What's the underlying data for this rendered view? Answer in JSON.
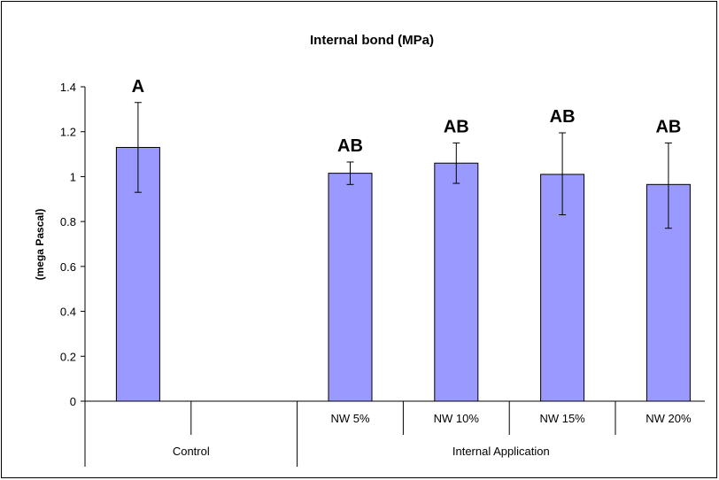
{
  "chart_data": {
    "type": "bar",
    "title": "Internal bond (MPa)",
    "ylabel": "(mega Pascal)",
    "xlabel": "",
    "ylim": [
      0,
      1.4
    ],
    "yticks": [
      "0",
      "0.2",
      "0.4",
      "0.6",
      "0.8",
      "1",
      "1.2",
      "1.4"
    ],
    "grid": false,
    "legend": "none",
    "categories": [
      {
        "label": "",
        "group": "Control",
        "value": 1.13,
        "err_low": 0.93,
        "err_high": 1.33,
        "sig": "A"
      },
      {
        "label": "NW 5%",
        "group": "Internal Application",
        "value": 1.015,
        "err_low": 0.965,
        "err_high": 1.065,
        "sig": "AB"
      },
      {
        "label": "NW 10%",
        "group": "Internal Application",
        "value": 1.06,
        "err_low": 0.97,
        "err_high": 1.15,
        "sig": "AB"
      },
      {
        "label": "NW 15%",
        "group": "Internal Application",
        "value": 1.01,
        "err_low": 0.83,
        "err_high": 1.195,
        "sig": "AB"
      },
      {
        "label": "NW 20%",
        "group": "Internal Application",
        "value": 0.965,
        "err_low": 0.77,
        "err_high": 1.15,
        "sig": "AB"
      }
    ],
    "groups": [
      "Control",
      "Internal Application"
    ],
    "colors": {
      "bar_fill": "#9999ff",
      "bar_stroke": "#000000",
      "axis": "#000000"
    }
  }
}
